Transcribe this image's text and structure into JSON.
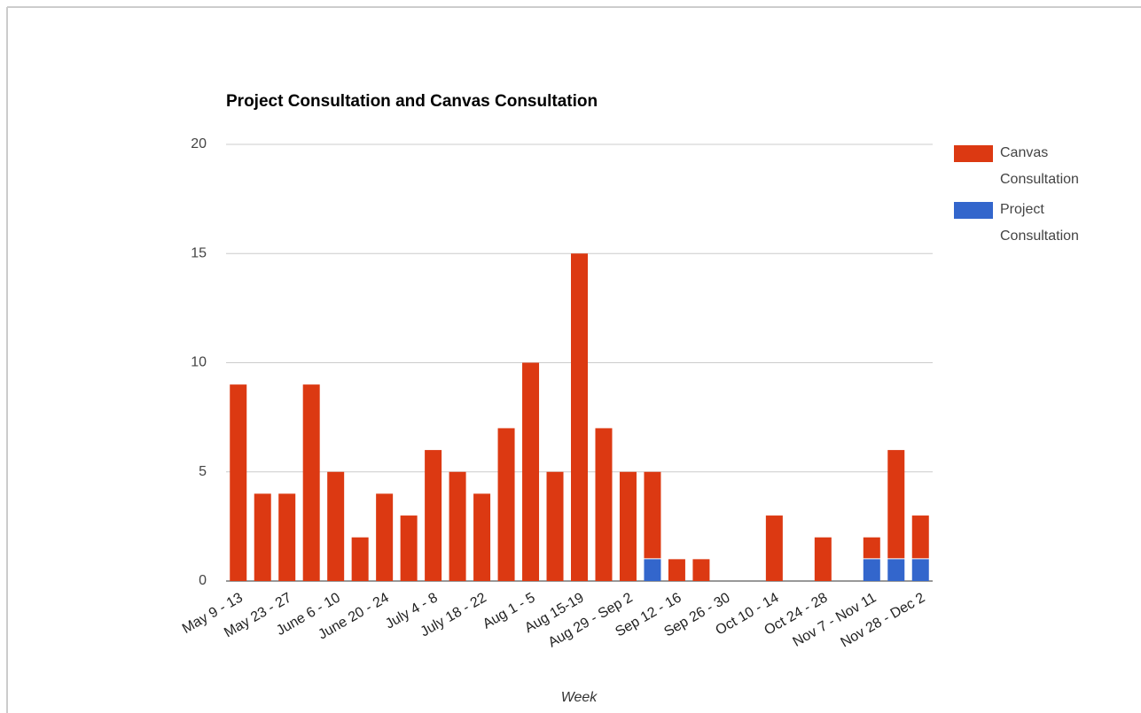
{
  "chart_data": {
    "type": "stacked_bar",
    "title": "Project Consultation and Canvas Consultation",
    "x_label": "Week",
    "categories": [
      "May 9 - 13",
      null,
      "May 23 - 27",
      null,
      "June 6 - 10",
      null,
      "June 20 - 24",
      null,
      "July 4 - 8",
      null,
      "July 18 - 22",
      null,
      "Aug 1 - 5",
      null,
      "Aug 15-19",
      null,
      "Aug 29 - Sep 2",
      null,
      "Sep 12 - 16",
      null,
      "Sep 26 - 30",
      null,
      "Oct 10 - 14",
      null,
      "Oct 24 - 28",
      null,
      "Nov 7 - Nov 11",
      null,
      "Nov 28 - Dec 2"
    ],
    "series": [
      {
        "name": "Canvas Consultation",
        "color": "#dc3912",
        "values": [
          9,
          4,
          4,
          9,
          5,
          2,
          4,
          3,
          6,
          5,
          4,
          7,
          10,
          5,
          15,
          7,
          5,
          4,
          1,
          1,
          0,
          0,
          3,
          0,
          2,
          0,
          1,
          5,
          2
        ]
      },
      {
        "name": "Project Consultation",
        "color": "#3366cc",
        "values": [
          0,
          0,
          0,
          0,
          0,
          0,
          0,
          0,
          0,
          0,
          0,
          0,
          0,
          0,
          0,
          0,
          0,
          1,
          0,
          0,
          0,
          0,
          0,
          0,
          0,
          0,
          1,
          1,
          1
        ]
      }
    ],
    "stack_order": "bottom-up: last series first",
    "ylim": [
      0,
      20
    ],
    "yticks": [
      0,
      5,
      10,
      15,
      20
    ],
    "grid": true,
    "legend": "right"
  }
}
